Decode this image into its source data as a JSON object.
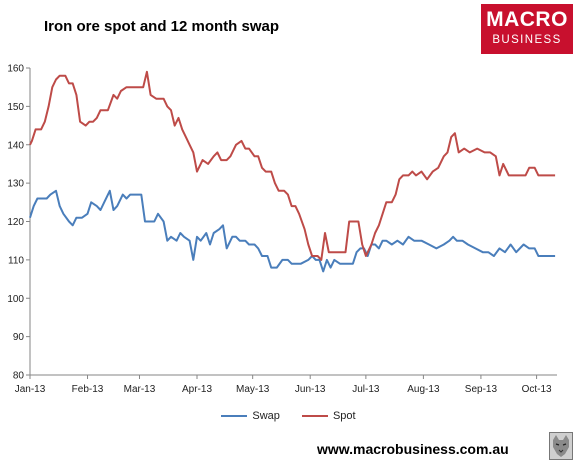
{
  "chart_data": {
    "type": "line",
    "title": "Iron ore spot and 12 month swap",
    "xlabel": "",
    "ylabel": "",
    "ylim": [
      80,
      160
    ],
    "yticks": [
      80,
      90,
      100,
      110,
      120,
      130,
      140,
      150,
      160
    ],
    "xlim": [
      "2013-01-01",
      "2013-10-12"
    ],
    "xticks": [
      {
        "date": "2013-01-01",
        "label": "Jan-13"
      },
      {
        "date": "2013-02-01",
        "label": "Feb-13"
      },
      {
        "date": "2013-03-01",
        "label": "Mar-13"
      },
      {
        "date": "2013-04-01",
        "label": "Apr-13"
      },
      {
        "date": "2013-05-01",
        "label": "May-13"
      },
      {
        "date": "2013-06-01",
        "label": "Jun-13"
      },
      {
        "date": "2013-07-01",
        "label": "Jul-13"
      },
      {
        "date": "2013-08-01",
        "label": "Aug-13"
      },
      {
        "date": "2013-09-01",
        "label": "Sep-13"
      },
      {
        "date": "2013-10-01",
        "label": "Oct-13"
      }
    ],
    "grid": false,
    "legend": "bottom",
    "series": [
      {
        "name": "Swap",
        "color": "#4a7ebb",
        "points": [
          [
            "2013-01-01",
            121
          ],
          [
            "2013-01-03",
            124
          ],
          [
            "2013-01-05",
            126
          ],
          [
            "2013-01-10",
            126
          ],
          [
            "2013-01-12",
            127
          ],
          [
            "2013-01-15",
            128
          ],
          [
            "2013-01-17",
            124
          ],
          [
            "2013-01-19",
            122
          ],
          [
            "2013-01-22",
            120
          ],
          [
            "2013-01-24",
            119
          ],
          [
            "2013-01-26",
            121
          ],
          [
            "2013-01-29",
            121
          ],
          [
            "2013-02-01",
            122
          ],
          [
            "2013-02-03",
            125
          ],
          [
            "2013-02-06",
            124
          ],
          [
            "2013-02-08",
            123
          ],
          [
            "2013-02-10",
            125
          ],
          [
            "2013-02-13",
            128
          ],
          [
            "2013-02-15",
            123
          ],
          [
            "2013-02-17",
            124
          ],
          [
            "2013-02-20",
            127
          ],
          [
            "2013-02-22",
            126
          ],
          [
            "2013-02-24",
            127
          ],
          [
            "2013-02-28",
            127
          ],
          [
            "2013-03-02",
            127
          ],
          [
            "2013-03-04",
            120
          ],
          [
            "2013-03-07",
            120
          ],
          [
            "2013-03-09",
            120
          ],
          [
            "2013-03-11",
            122
          ],
          [
            "2013-03-14",
            120
          ],
          [
            "2013-03-16",
            115
          ],
          [
            "2013-03-18",
            116
          ],
          [
            "2013-03-21",
            115
          ],
          [
            "2013-03-23",
            117
          ],
          [
            "2013-03-25",
            116
          ],
          [
            "2013-03-28",
            115
          ],
          [
            "2013-03-30",
            110
          ],
          [
            "2013-04-01",
            116
          ],
          [
            "2013-04-03",
            115
          ],
          [
            "2013-04-06",
            117
          ],
          [
            "2013-04-08",
            114
          ],
          [
            "2013-04-10",
            117
          ],
          [
            "2013-04-13",
            118
          ],
          [
            "2013-04-15",
            119
          ],
          [
            "2013-04-17",
            113
          ],
          [
            "2013-04-20",
            116
          ],
          [
            "2013-04-22",
            116
          ],
          [
            "2013-04-24",
            115
          ],
          [
            "2013-04-27",
            115
          ],
          [
            "2013-04-29",
            114
          ],
          [
            "2013-05-02",
            114
          ],
          [
            "2013-05-04",
            113
          ],
          [
            "2013-05-06",
            111
          ],
          [
            "2013-05-09",
            111
          ],
          [
            "2013-05-11",
            108
          ],
          [
            "2013-05-14",
            108
          ],
          [
            "2013-05-17",
            110
          ],
          [
            "2013-05-20",
            110
          ],
          [
            "2013-05-22",
            109
          ],
          [
            "2013-05-27",
            109
          ],
          [
            "2013-05-31",
            110
          ],
          [
            "2013-06-02",
            111
          ],
          [
            "2013-06-04",
            110
          ],
          [
            "2013-06-06",
            110
          ],
          [
            "2013-06-08",
            107
          ],
          [
            "2013-06-10",
            110
          ],
          [
            "2013-06-12",
            108
          ],
          [
            "2013-06-14",
            110
          ],
          [
            "2013-06-17",
            109
          ],
          [
            "2013-06-20",
            109
          ],
          [
            "2013-06-24",
            109
          ],
          [
            "2013-06-26",
            112
          ],
          [
            "2013-06-28",
            113
          ],
          [
            "2013-06-30",
            113
          ],
          [
            "2013-07-02",
            111
          ],
          [
            "2013-07-04",
            114
          ],
          [
            "2013-07-06",
            114
          ],
          [
            "2013-07-08",
            113
          ],
          [
            "2013-07-10",
            115
          ],
          [
            "2013-07-12",
            115
          ],
          [
            "2013-07-15",
            114
          ],
          [
            "2013-07-18",
            115
          ],
          [
            "2013-07-21",
            114
          ],
          [
            "2013-07-24",
            116
          ],
          [
            "2013-07-27",
            115
          ],
          [
            "2013-07-31",
            115
          ],
          [
            "2013-08-04",
            114
          ],
          [
            "2013-08-08",
            113
          ],
          [
            "2013-08-12",
            114
          ],
          [
            "2013-08-15",
            115
          ],
          [
            "2013-08-17",
            116
          ],
          [
            "2013-08-19",
            115
          ],
          [
            "2013-08-22",
            115
          ],
          [
            "2013-08-25",
            114
          ],
          [
            "2013-08-29",
            113
          ],
          [
            "2013-09-02",
            112
          ],
          [
            "2013-09-05",
            112
          ],
          [
            "2013-09-08",
            111
          ],
          [
            "2013-09-11",
            113
          ],
          [
            "2013-09-14",
            112
          ],
          [
            "2013-09-17",
            114
          ],
          [
            "2013-09-20",
            112
          ],
          [
            "2013-09-24",
            114
          ],
          [
            "2013-09-27",
            113
          ],
          [
            "2013-09-30",
            113
          ],
          [
            "2013-10-02",
            111
          ],
          [
            "2013-10-05",
            111
          ],
          [
            "2013-10-08",
            111
          ],
          [
            "2013-10-11",
            111
          ]
        ]
      },
      {
        "name": "Spot",
        "color": "#be4b48",
        "points": [
          [
            "2013-01-01",
            140
          ],
          [
            "2013-01-02",
            141
          ],
          [
            "2013-01-04",
            144
          ],
          [
            "2013-01-07",
            144
          ],
          [
            "2013-01-09",
            146
          ],
          [
            "2013-01-11",
            150
          ],
          [
            "2013-01-13",
            155
          ],
          [
            "2013-01-15",
            157
          ],
          [
            "2013-01-17",
            158
          ],
          [
            "2013-01-20",
            158
          ],
          [
            "2013-01-22",
            156
          ],
          [
            "2013-01-24",
            156
          ],
          [
            "2013-01-26",
            153
          ],
          [
            "2013-01-28",
            146
          ],
          [
            "2013-01-31",
            145
          ],
          [
            "2013-02-02",
            146
          ],
          [
            "2013-02-04",
            146
          ],
          [
            "2013-02-06",
            147
          ],
          [
            "2013-02-08",
            149
          ],
          [
            "2013-02-12",
            149
          ],
          [
            "2013-02-15",
            153
          ],
          [
            "2013-02-17",
            152
          ],
          [
            "2013-02-19",
            154
          ],
          [
            "2013-02-22",
            155
          ],
          [
            "2013-02-25",
            155
          ],
          [
            "2013-02-28",
            155
          ],
          [
            "2013-03-03",
            155
          ],
          [
            "2013-03-05",
            159
          ],
          [
            "2013-03-07",
            153
          ],
          [
            "2013-03-10",
            152
          ],
          [
            "2013-03-14",
            152
          ],
          [
            "2013-03-16",
            150
          ],
          [
            "2013-03-18",
            149
          ],
          [
            "2013-03-20",
            145
          ],
          [
            "2013-03-22",
            147
          ],
          [
            "2013-03-24",
            144
          ],
          [
            "2013-03-26",
            142
          ],
          [
            "2013-03-28",
            140
          ],
          [
            "2013-03-30",
            138
          ],
          [
            "2013-04-01",
            133
          ],
          [
            "2013-04-04",
            136
          ],
          [
            "2013-04-07",
            135
          ],
          [
            "2013-04-10",
            137
          ],
          [
            "2013-04-12",
            138
          ],
          [
            "2013-04-14",
            136
          ],
          [
            "2013-04-17",
            136
          ],
          [
            "2013-04-19",
            137
          ],
          [
            "2013-04-22",
            140
          ],
          [
            "2013-04-25",
            141
          ],
          [
            "2013-04-27",
            139
          ],
          [
            "2013-04-29",
            139
          ],
          [
            "2013-05-02",
            137
          ],
          [
            "2013-05-04",
            137
          ],
          [
            "2013-05-06",
            134
          ],
          [
            "2013-05-08",
            133
          ],
          [
            "2013-05-11",
            133
          ],
          [
            "2013-05-13",
            130
          ],
          [
            "2013-05-15",
            128
          ],
          [
            "2013-05-18",
            128
          ],
          [
            "2013-05-20",
            127
          ],
          [
            "2013-05-22",
            124
          ],
          [
            "2013-05-24",
            124
          ],
          [
            "2013-05-26",
            122
          ],
          [
            "2013-05-29",
            118
          ],
          [
            "2013-05-31",
            114
          ],
          [
            "2013-06-02",
            111
          ],
          [
            "2013-06-05",
            111
          ],
          [
            "2013-06-07",
            110
          ],
          [
            "2013-06-09",
            117
          ],
          [
            "2013-06-11",
            112
          ],
          [
            "2013-06-14",
            112
          ],
          [
            "2013-06-17",
            112
          ],
          [
            "2013-06-20",
            112
          ],
          [
            "2013-06-22",
            120
          ],
          [
            "2013-06-25",
            120
          ],
          [
            "2013-06-27",
            120
          ],
          [
            "2013-06-29",
            114
          ],
          [
            "2013-07-01",
            111
          ],
          [
            "2013-07-04",
            114
          ],
          [
            "2013-07-06",
            117
          ],
          [
            "2013-07-08",
            119
          ],
          [
            "2013-07-10",
            122
          ],
          [
            "2013-07-12",
            125
          ],
          [
            "2013-07-15",
            125
          ],
          [
            "2013-07-17",
            127
          ],
          [
            "2013-07-19",
            131
          ],
          [
            "2013-07-21",
            132
          ],
          [
            "2013-07-24",
            132
          ],
          [
            "2013-07-26",
            133
          ],
          [
            "2013-07-28",
            132
          ],
          [
            "2013-07-31",
            133
          ],
          [
            "2013-08-03",
            131
          ],
          [
            "2013-08-06",
            133
          ],
          [
            "2013-08-09",
            134
          ],
          [
            "2013-08-12",
            137
          ],
          [
            "2013-08-14",
            138
          ],
          [
            "2013-08-16",
            142
          ],
          [
            "2013-08-18",
            143
          ],
          [
            "2013-08-20",
            138
          ],
          [
            "2013-08-23",
            139
          ],
          [
            "2013-08-26",
            138
          ],
          [
            "2013-08-30",
            139
          ],
          [
            "2013-09-03",
            138
          ],
          [
            "2013-09-06",
            138
          ],
          [
            "2013-09-09",
            137
          ],
          [
            "2013-09-11",
            132
          ],
          [
            "2013-09-13",
            135
          ],
          [
            "2013-09-16",
            132
          ],
          [
            "2013-09-20",
            132
          ],
          [
            "2013-09-25",
            132
          ],
          [
            "2013-09-27",
            134
          ],
          [
            "2013-09-30",
            134
          ],
          [
            "2013-10-02",
            132
          ],
          [
            "2013-10-05",
            132
          ],
          [
            "2013-10-08",
            132
          ],
          [
            "2013-10-11",
            132
          ]
        ]
      }
    ]
  },
  "logo": {
    "line1": "MACRO",
    "line2": "BUSINESS"
  },
  "footer": {
    "url": "www.macrobusiness.com.au"
  },
  "icons": {
    "footer_badge": "wolf-logo-icon"
  }
}
